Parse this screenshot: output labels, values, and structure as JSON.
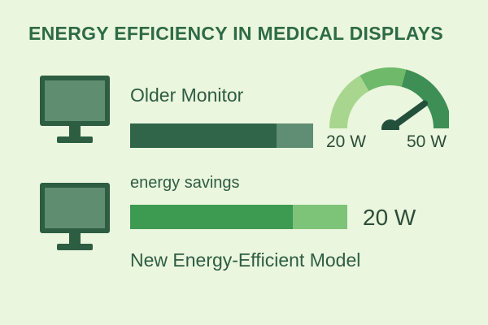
{
  "title": "ENERGY EFFICIENCY IN MEDICAL DISPLAYS",
  "old_monitor": {
    "label": "Older Monitor",
    "icon": "monitor-icon",
    "bar_fraction": 0.8
  },
  "new_monitor": {
    "label": "New Energy-Efficient Model",
    "icon": "monitor-icon",
    "savings_label": "energy savings",
    "bar_fraction": 0.75,
    "value": "20 W"
  },
  "gauge": {
    "min_label": "20 W",
    "max_label": "50 W",
    "needle_fraction": 0.8,
    "icon": "gauge-icon"
  },
  "colors": {
    "background": "#eaf6dd",
    "title": "#2e6b45",
    "old_bar_fill": "#30654a",
    "old_bar_rest": "#5f8e74",
    "new_bar_fill": "#3d9a51",
    "new_bar_rest": "#7dc478",
    "gauge_light": "#a8d68f",
    "gauge_mid": "#6fb96a",
    "gauge_dark": "#3e8f55",
    "needle": "#23503a"
  }
}
